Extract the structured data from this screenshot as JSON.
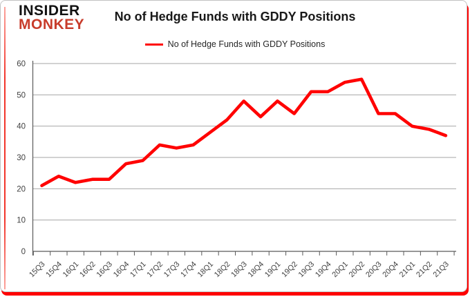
{
  "brand": {
    "line1": "INSIDER",
    "line2": "MONKEY",
    "line2_color": "#c83c2b"
  },
  "header": {
    "title": "No of Hedge Funds with GDDY Positions"
  },
  "legend": {
    "label": "No of Hedge Funds with GDDY Positions",
    "line_color": "#ff0000"
  },
  "frame": {
    "accent_color": "#fe0000",
    "border_color": "#c2c2c2"
  },
  "chart_data": {
    "type": "line",
    "title": "No of Hedge Funds with GDDY Positions",
    "categories": [
      "15Q3",
      "15Q4",
      "16Q1",
      "16Q2",
      "16Q3",
      "16Q4",
      "17Q1",
      "17Q2",
      "17Q3",
      "17Q4",
      "18Q1",
      "18Q2",
      "18Q3",
      "18Q4",
      "19Q1",
      "19Q2",
      "19Q3",
      "19Q4",
      "20Q1",
      "20Q2",
      "20Q3",
      "20Q4",
      "21Q1",
      "21Q2",
      "21Q3"
    ],
    "series": [
      {
        "name": "No of Hedge Funds with GDDY Positions",
        "color": "#ff0000",
        "values": [
          21,
          24,
          22,
          23,
          23,
          28,
          29,
          34,
          33,
          34,
          38,
          42,
          48,
          43,
          48,
          44,
          51,
          51,
          54,
          55,
          44,
          44,
          40,
          39,
          37
        ]
      }
    ],
    "xlabel": "",
    "ylabel": "",
    "ylim": [
      0,
      60
    ],
    "yticks": [
      0,
      10,
      20,
      30,
      40,
      50,
      60
    ],
    "grid": true,
    "legend_position": "top",
    "gridline_color": "#a6a6a6",
    "axis_color": "#595959",
    "tick_label_color": "#404040"
  }
}
